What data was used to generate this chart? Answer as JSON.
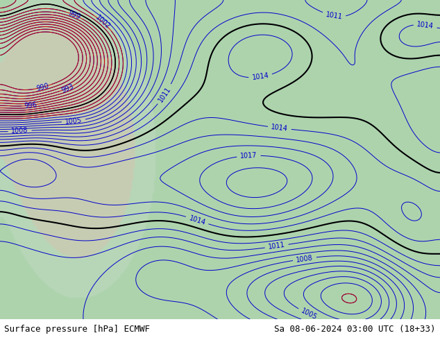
{
  "title_left": "Surface pressure [hPa] ECMWF",
  "title_right": "Sa 08-06-2024 03:00 UTC (18+33)",
  "bg_color_ocean": "#a8d4a8",
  "bg_color_land": "#b8dbb8",
  "bg_color_mountains": "#c8c8b0",
  "contour_color_blue": "#0000cc",
  "contour_color_red": "#cc0000",
  "contour_color_black": "#000000",
  "label_fontsize": 7,
  "caption_fontsize": 9,
  "fig_width": 6.34,
  "fig_height": 4.9,
  "dpi": 100
}
